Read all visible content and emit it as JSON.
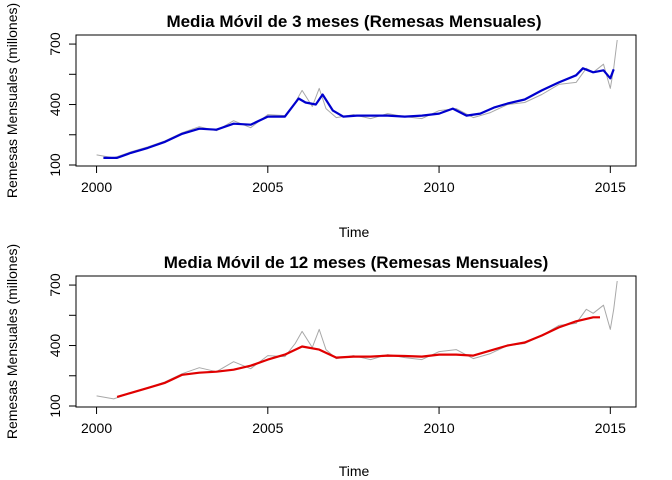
{
  "chart_data": [
    {
      "type": "line",
      "title": "Media Móvil de 3 meses (Remesas Mensuales)",
      "xlabel": "Time",
      "ylabel": "Remesas Mensuales (millones)",
      "xlim": [
        1999.4,
        2015.75
      ],
      "ylim": [
        95,
        745
      ],
      "xticks": [
        2000,
        2005,
        2010,
        2015
      ],
      "yticks": [
        100,
        400,
        700
      ],
      "grid": false,
      "series": [
        {
          "role": "raw",
          "color": "#a8a8a8",
          "x": [
            2000.0,
            2000.5,
            2001.0,
            2001.5,
            2002.0,
            2002.5,
            2003.0,
            2003.5,
            2004.0,
            2004.5,
            2005.0,
            2005.5,
            2005.8,
            2006.0,
            2006.3,
            2006.5,
            2006.7,
            2007.0,
            2007.5,
            2008.0,
            2008.5,
            2009.0,
            2009.5,
            2010.0,
            2010.5,
            2011.0,
            2011.5,
            2012.0,
            2012.5,
            2013.0,
            2013.5,
            2014.0,
            2014.3,
            2014.5,
            2014.8,
            2015.0,
            2015.1,
            2015.2
          ],
          "y": [
            150,
            135,
            165,
            190,
            220,
            260,
            290,
            270,
            320,
            285,
            350,
            345,
            410,
            470,
            390,
            480,
            380,
            335,
            350,
            330,
            355,
            340,
            330,
            370,
            380,
            335,
            360,
            400,
            410,
            450,
            500,
            510,
            580,
            560,
            600,
            480,
            580,
            720
          ]
        },
        {
          "role": "moving-average",
          "color": "#0000cd",
          "x": [
            2000.2,
            2000.6,
            2001.0,
            2001.5,
            2002.0,
            2002.5,
            2003.0,
            2003.5,
            2004.0,
            2004.5,
            2005.0,
            2005.5,
            2005.9,
            2006.1,
            2006.4,
            2006.6,
            2006.9,
            2007.2,
            2007.6,
            2008.0,
            2008.5,
            2009.0,
            2009.5,
            2010.0,
            2010.4,
            2010.8,
            2011.2,
            2011.6,
            2012.0,
            2012.5,
            2013.0,
            2013.5,
            2014.0,
            2014.2,
            2014.5,
            2014.8,
            2015.0,
            2015.1
          ],
          "y": [
            135,
            135,
            160,
            185,
            215,
            255,
            280,
            275,
            305,
            300,
            340,
            340,
            430,
            410,
            400,
            450,
            370,
            340,
            345,
            345,
            345,
            340,
            345,
            355,
            380,
            345,
            355,
            385,
            405,
            425,
            470,
            510,
            545,
            580,
            560,
            570,
            530,
            575
          ]
        }
      ]
    },
    {
      "type": "line",
      "title": "Media Móvil de 12 meses (Remesas Mensuales)",
      "xlabel": "Time",
      "ylabel": "Remesas Mensuales (millones)",
      "xlim": [
        1999.4,
        2015.75
      ],
      "ylim": [
        95,
        745
      ],
      "xticks": [
        2000,
        2005,
        2010,
        2015
      ],
      "yticks": [
        100,
        400,
        700
      ],
      "grid": false,
      "series": [
        {
          "role": "raw",
          "color": "#a8a8a8",
          "x": [
            2000.0,
            2000.5,
            2001.0,
            2001.5,
            2002.0,
            2002.5,
            2003.0,
            2003.5,
            2004.0,
            2004.5,
            2005.0,
            2005.5,
            2005.8,
            2006.0,
            2006.3,
            2006.5,
            2006.7,
            2007.0,
            2007.5,
            2008.0,
            2008.5,
            2009.0,
            2009.5,
            2010.0,
            2010.5,
            2011.0,
            2011.5,
            2012.0,
            2012.5,
            2013.0,
            2013.5,
            2014.0,
            2014.3,
            2014.5,
            2014.8,
            2015.0,
            2015.1,
            2015.2
          ],
          "y": [
            150,
            135,
            165,
            190,
            220,
            260,
            290,
            270,
            320,
            285,
            350,
            345,
            410,
            470,
            390,
            480,
            380,
            335,
            350,
            330,
            355,
            340,
            330,
            370,
            380,
            335,
            360,
            400,
            410,
            450,
            500,
            510,
            580,
            560,
            600,
            480,
            580,
            720
          ]
        },
        {
          "role": "moving-average",
          "color": "#e00000",
          "x": [
            2000.6,
            2001.0,
            2001.5,
            2002.0,
            2002.5,
            2003.0,
            2003.5,
            2004.0,
            2004.5,
            2005.0,
            2005.5,
            2006.0,
            2006.5,
            2007.0,
            2007.5,
            2008.0,
            2008.5,
            2009.0,
            2009.5,
            2010.0,
            2010.5,
            2011.0,
            2011.5,
            2012.0,
            2012.5,
            2013.0,
            2013.5,
            2014.0,
            2014.5,
            2014.7
          ],
          "y": [
            145,
            165,
            190,
            215,
            255,
            265,
            270,
            280,
            300,
            330,
            355,
            395,
            380,
            340,
            345,
            345,
            350,
            348,
            345,
            355,
            355,
            350,
            375,
            400,
            415,
            450,
            490,
            520,
            540,
            540
          ]
        }
      ]
    }
  ]
}
